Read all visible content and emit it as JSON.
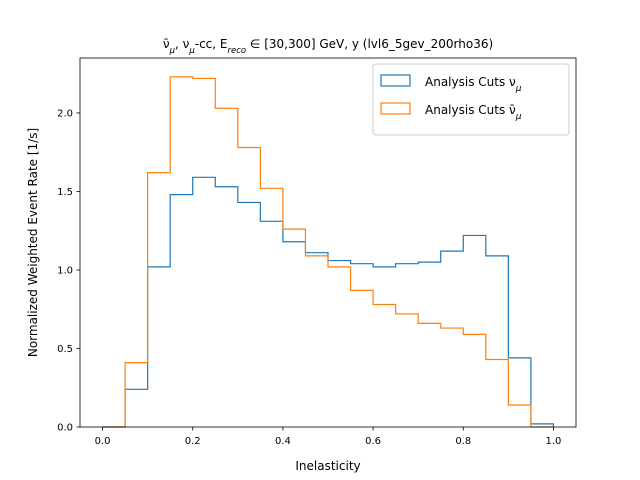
{
  "chart_data": {
    "type": "step-histogram",
    "title": "ν̄μ, νμ-cc, Ereco ∈ [30,300] GeV, y (lvl6_5gev_200rho36)",
    "title_parts": {
      "nubar": "ν̄",
      "nubar_sub": "μ",
      "sep1": ", ",
      "nu": "ν",
      "nu_sub": "μ",
      "cc": "-cc, E",
      "reco_sub": "reco",
      "rest": " ∈  [30,300] GeV, y (lvl6_5gev_200rho36)"
    },
    "xlabel": "Inelasticity",
    "ylabel": "Normalized Weighted Event Rate [1/s]",
    "xlim": [
      -0.05,
      1.05
    ],
    "ylim": [
      0,
      2.35
    ],
    "xticks": [
      "0.0",
      "0.2",
      "0.4",
      "0.6",
      "0.8",
      "1.0"
    ],
    "yticks": [
      "0.0",
      "0.5",
      "1.0",
      "1.5",
      "2.0"
    ],
    "bin_edges": [
      0.0,
      0.05,
      0.1,
      0.15,
      0.2,
      0.25,
      0.3,
      0.35,
      0.4,
      0.45,
      0.5,
      0.55,
      0.6,
      0.65,
      0.7,
      0.75,
      0.8,
      0.85,
      0.9,
      0.95,
      1.0
    ],
    "series": [
      {
        "name": "Analysis Cuts νμ",
        "legend_text": "Analysis Cuts ν",
        "legend_sub": "μ",
        "color": "#1f77b4",
        "values": [
          0.0,
          0.24,
          1.02,
          1.48,
          1.59,
          1.53,
          1.43,
          1.31,
          1.18,
          1.11,
          1.06,
          1.04,
          1.02,
          1.04,
          1.05,
          1.12,
          1.22,
          1.09,
          0.44,
          0.02
        ]
      },
      {
        "name": "Analysis Cuts ν̄μ",
        "legend_text": "Analysis Cuts ν̄",
        "legend_sub": "μ",
        "color": "#ff7f0e",
        "values": [
          0.0,
          0.41,
          1.62,
          2.23,
          2.22,
          2.03,
          1.78,
          1.52,
          1.26,
          1.09,
          1.02,
          0.87,
          0.78,
          0.72,
          0.66,
          0.63,
          0.59,
          0.43,
          0.14,
          0.0
        ]
      }
    ],
    "legend_position": "top-right",
    "grid": false
  }
}
